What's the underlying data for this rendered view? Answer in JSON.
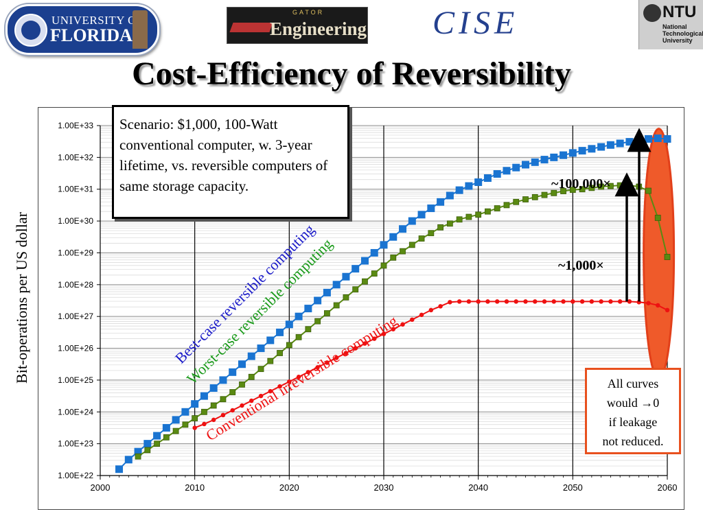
{
  "logos": {
    "uf_line1": "UNIVERSITY OF",
    "uf_line2": "FLORIDA",
    "eng_small": "GATOR",
    "eng_big": "Engineering",
    "cise": "CISE",
    "ntu_big": "NTU",
    "ntu_line1": "National",
    "ntu_line2": "Technological",
    "ntu_line3": "University"
  },
  "slide_title": "Cost-Efficiency of Reversibility",
  "scenario_text": "Scenario: $1,000, 100-Watt conventional computer, w. 3-year lifetime, vs. reversible computers of same storage capacity.",
  "note_lines": [
    "All curves",
    "would →0",
    "if leakage",
    "not reduced."
  ],
  "colors": {
    "best": "#1a74d1",
    "worst": "#5a8a12",
    "conv": "#ee1111",
    "highlight": "#ef5a2a",
    "note_border": "#e8501e"
  },
  "chart_data": {
    "type": "line",
    "ylabel": "Bit-operations per US dollar",
    "y_scale": "log",
    "ylim": [
      1e+22,
      1e+33
    ],
    "xlim": [
      2000,
      2060
    ],
    "x_ticks": [
      "2000",
      "2010",
      "2020",
      "2030",
      "2040",
      "2050",
      "2060"
    ],
    "y_ticks": [
      "1.00E+22",
      "1.00E+23",
      "1.00E+24",
      "1.00E+25",
      "1.00E+26",
      "1.00E+27",
      "1.00E+28",
      "1.00E+29",
      "1.00E+30",
      "1.00E+31",
      "1.00E+32",
      "1.00E+33"
    ],
    "grid": true,
    "series": [
      {
        "name": "Best-case reversible computing",
        "x": [
          2002,
          2003,
          2004,
          2005,
          2006,
          2007,
          2008,
          2009,
          2010,
          2011,
          2012,
          2013,
          2014,
          2015,
          2016,
          2017,
          2018,
          2019,
          2020,
          2021,
          2022,
          2023,
          2024,
          2025,
          2026,
          2027,
          2028,
          2029,
          2030,
          2031,
          2032,
          2033,
          2034,
          2035,
          2036,
          2037,
          2038,
          2039,
          2040,
          2041,
          2042,
          2043,
          2044,
          2045,
          2046,
          2047,
          2048,
          2049,
          2050,
          2051,
          2052,
          2053,
          2054,
          2055,
          2056,
          2057,
          2058,
          2059,
          2060
        ],
        "log10_y": [
          22.2,
          22.5,
          22.75,
          23.0,
          23.25,
          23.5,
          23.75,
          24.0,
          24.25,
          24.5,
          24.75,
          25.0,
          25.25,
          25.5,
          25.75,
          26.0,
          26.25,
          26.5,
          26.75,
          27.0,
          27.25,
          27.5,
          27.75,
          28.0,
          28.25,
          28.5,
          28.75,
          29.0,
          29.25,
          29.5,
          29.75,
          30.0,
          30.2,
          30.4,
          30.6,
          30.8,
          30.97,
          31.1,
          31.22,
          31.35,
          31.48,
          31.58,
          31.68,
          31.77,
          31.85,
          31.93,
          32.0,
          32.07,
          32.14,
          32.21,
          32.27,
          32.33,
          32.39,
          32.44,
          32.49,
          32.54,
          32.58,
          32.6,
          32.58
        ]
      },
      {
        "name": "Worst-case reversible computing",
        "x": [
          2004,
          2005,
          2006,
          2007,
          2008,
          2009,
          2010,
          2011,
          2012,
          2013,
          2014,
          2015,
          2016,
          2017,
          2018,
          2019,
          2020,
          2021,
          2022,
          2023,
          2024,
          2025,
          2026,
          2027,
          2028,
          2029,
          2030,
          2031,
          2032,
          2033,
          2034,
          2035,
          2036,
          2037,
          2038,
          2039,
          2040,
          2041,
          2042,
          2043,
          2044,
          2045,
          2046,
          2047,
          2048,
          2049,
          2050,
          2051,
          2052,
          2053,
          2054,
          2055,
          2056,
          2057,
          2058,
          2059,
          2060
        ],
        "log10_y": [
          22.6,
          22.8,
          23.0,
          23.2,
          23.4,
          23.6,
          23.8,
          24.0,
          24.2,
          24.4,
          24.62,
          24.86,
          25.1,
          25.35,
          25.6,
          25.85,
          26.1,
          26.35,
          26.6,
          26.85,
          27.1,
          27.35,
          27.6,
          27.85,
          28.1,
          28.35,
          28.6,
          28.85,
          29.05,
          29.25,
          29.45,
          29.62,
          29.8,
          29.92,
          30.05,
          30.13,
          30.2,
          30.3,
          30.4,
          30.5,
          30.6,
          30.68,
          30.75,
          30.82,
          30.88,
          30.94,
          30.98,
          31.0,
          31.04,
          31.08,
          31.1,
          31.12,
          31.12,
          31.08,
          30.95,
          30.1,
          28.87
        ]
      },
      {
        "name": "Conventional irreversible computing",
        "x": [
          2010,
          2011,
          2012,
          2013,
          2014,
          2015,
          2016,
          2017,
          2018,
          2019,
          2020,
          2021,
          2022,
          2023,
          2024,
          2025,
          2026,
          2027,
          2028,
          2029,
          2030,
          2031,
          2032,
          2033,
          2034,
          2035,
          2036,
          2037,
          2038,
          2039,
          2040,
          2041,
          2042,
          2043,
          2044,
          2045,
          2046,
          2047,
          2048,
          2049,
          2050,
          2051,
          2052,
          2053,
          2054,
          2055,
          2056,
          2057,
          2058,
          2059,
          2060
        ],
        "log10_y": [
          23.5,
          23.62,
          23.75,
          23.9,
          24.05,
          24.2,
          24.35,
          24.5,
          24.65,
          24.8,
          24.95,
          25.1,
          25.25,
          25.4,
          25.55,
          25.7,
          25.85,
          26.0,
          26.15,
          26.3,
          26.45,
          26.6,
          26.75,
          26.9,
          27.05,
          27.2,
          27.32,
          27.45,
          27.47,
          27.47,
          27.47,
          27.47,
          27.47,
          27.47,
          27.47,
          27.47,
          27.47,
          27.47,
          27.47,
          27.47,
          27.47,
          27.47,
          27.47,
          27.47,
          27.47,
          27.47,
          27.47,
          27.45,
          27.42,
          27.35,
          27.2
        ]
      }
    ],
    "annotations": [
      "~100,000×",
      "~1,000×"
    ]
  }
}
